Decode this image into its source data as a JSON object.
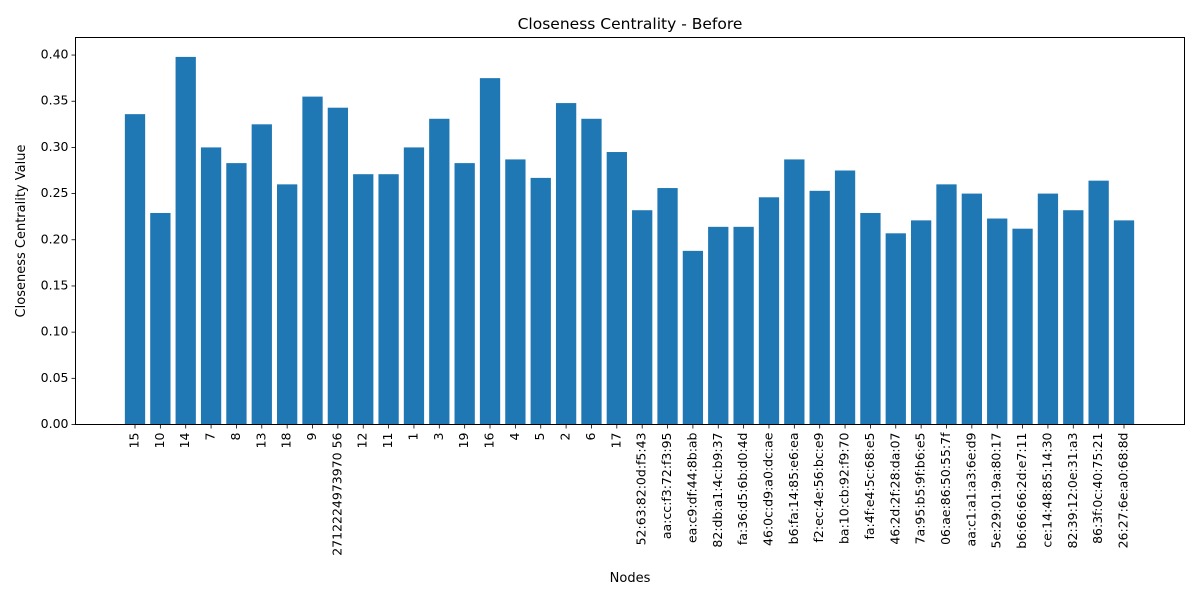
{
  "chart_data": {
    "type": "bar",
    "title": "Closeness Centrality - Before",
    "xlabel": "Nodes",
    "ylabel": "Closeness Centrality Value",
    "ylim": [
      0,
      0.419
    ],
    "yticks": [
      "0.00",
      "0.05",
      "0.10",
      "0.15",
      "0.20",
      "0.25",
      "0.30",
      "0.35",
      "0.40"
    ],
    "grid": false,
    "bar_color": "#1f77b4",
    "categories": [
      "15",
      "10",
      "14",
      "7",
      "8",
      "13",
      "18",
      "9",
      "2712224973970 56",
      "12",
      "11",
      "1",
      "3",
      "19",
      "16",
      "4",
      "5",
      "2",
      "6",
      "17",
      "52:63:82:0d:f5:43",
      "aa:cc:f3:72:f3:95",
      "ea:c9:df:44:8b:ab",
      "82:db:a1:4c:b9:37",
      "fa:36:d5:6b:d0:4d",
      "46:0c:d9:a0:dc:ae",
      "b6:fa:14:85:e6:ea",
      "f2:ec:4e:56:bc:e9",
      "ba:10:cb:92:f9:70",
      "fa:4f:e4:5c:68:e5",
      "46:2d:2f:28:da:07",
      "7a:95:b5:9f:b6:e5",
      "06:ae:86:50:55:7f",
      "aa:c1:a1:a3:6e:d9",
      "5e:29:01:9a:80:17",
      "b6:66:66:2d:e7:11",
      "ce:14:48:85:14:30",
      "82:39:12:0e:31:a3",
      "86:3f:0c:40:75:21",
      "26:27:6e:a0:68:8d"
    ],
    "values": [
      0.336,
      0.229,
      0.398,
      0.3,
      0.283,
      0.325,
      0.26,
      0.355,
      0.343,
      0.271,
      0.271,
      0.3,
      0.331,
      0.283,
      0.375,
      0.287,
      0.267,
      0.348,
      0.331,
      0.295,
      0.232,
      0.256,
      0.188,
      0.214,
      0.214,
      0.246,
      0.287,
      0.253,
      0.275,
      0.229,
      0.207,
      0.221,
      0.26,
      0.25,
      0.223,
      0.212,
      0.25,
      0.232,
      0.264,
      0.221
    ]
  }
}
